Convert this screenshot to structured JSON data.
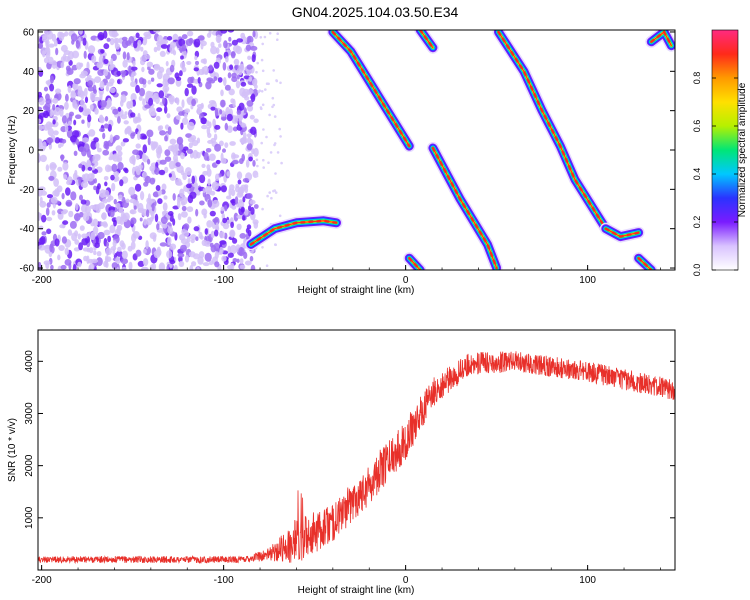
{
  "title": "GN04.2025.104.03.50.E34",
  "chart_data": [
    {
      "type": "heatmap",
      "xlabel": "Height of straight line (km)",
      "ylabel": "Frequency (Hz)",
      "xlim": [
        -202,
        148
      ],
      "ylim": [
        -61,
        61
      ],
      "xticks": [
        -200,
        -100,
        0,
        100
      ],
      "yticks": [
        -60,
        -40,
        -20,
        0,
        20,
        40,
        60
      ],
      "colorbar": {
        "label": "Normalized spectral amplitude",
        "range": [
          0,
          1
        ],
        "ticks": [
          "0.0",
          "0.2",
          "0.4",
          "0.6",
          "0.8"
        ],
        "tick_values": [
          0.0,
          0.2,
          0.4,
          0.6,
          0.8
        ],
        "colors": [
          "#ffffff",
          "#d9c3ff",
          "#7a1cff",
          "#2a33ff",
          "#00c8ff",
          "#00e676",
          "#b6f000",
          "#ffe000",
          "#ff9a00",
          "#ff2a1a",
          "#ff2a80"
        ]
      },
      "noise_region": {
        "x_range": [
          -202,
          -82
        ],
        "f_range": [
          -61,
          61
        ],
        "amplitude": 0.15
      },
      "features": [
        {
          "name": "",
          "points": [
            [
              -85,
              -48
            ],
            [
              -72,
              -40
            ],
            [
              -60,
              -37
            ],
            [
              -45,
              -36
            ],
            [
              -38,
              -37
            ]
          ]
        },
        {
          "name": "",
          "points": [
            [
              -40,
              60
            ],
            [
              -30,
              50
            ],
            [
              -20,
              35
            ],
            [
              -10,
              20
            ],
            [
              2,
              2
            ]
          ]
        },
        {
          "name": "",
          "points": [
            [
              8,
              61
            ],
            [
              15,
              52
            ]
          ]
        },
        {
          "name": "",
          "points": [
            [
              15,
              1
            ],
            [
              30,
              -25
            ],
            [
              45,
              -48
            ],
            [
              50,
              -60
            ]
          ]
        },
        {
          "name": "",
          "points": [
            [
              2,
              -55
            ],
            [
              8,
              -61
            ]
          ]
        },
        {
          "name": "",
          "points": [
            [
              51,
              60
            ],
            [
              65,
              40
            ],
            [
              75,
              20
            ],
            [
              85,
              2
            ],
            [
              93,
              -15
            ],
            [
              110,
              -40
            ]
          ]
        },
        {
          "name": "",
          "points": [
            [
              110,
              -40
            ],
            [
              118,
              -44
            ],
            [
              128,
              -42
            ]
          ]
        },
        {
          "name": "",
          "points": [
            [
              128,
              -55
            ],
            [
              135,
              -61
            ]
          ]
        },
        {
          "name": "",
          "points": [
            [
              135,
              55
            ],
            [
              142,
              60
            ],
            [
              146,
              53
            ]
          ]
        }
      ]
    },
    {
      "type": "line",
      "xlabel": "Height of straight line (km)",
      "ylabel": "SNR (10 * v/v)",
      "xlim": [
        -202,
        148
      ],
      "ylim": [
        0,
        4600
      ],
      "xticks": [
        -200,
        -100,
        0,
        100
      ],
      "yticks": [
        1000,
        2000,
        3000,
        4000
      ],
      "color": "#e8302a",
      "noise_seed": 7,
      "profile": [
        {
          "x": -202,
          "y": 200,
          "n": 80
        },
        {
          "x": -90,
          "y": 200,
          "n": 80
        },
        {
          "x": -75,
          "y": 300,
          "n": 150
        },
        {
          "x": -60,
          "y": 550,
          "n": 550
        },
        {
          "x": -40,
          "y": 900,
          "n": 450
        },
        {
          "x": -20,
          "y": 1650,
          "n": 500
        },
        {
          "x": 0,
          "y": 2500,
          "n": 500
        },
        {
          "x": 15,
          "y": 3400,
          "n": 350
        },
        {
          "x": 35,
          "y": 3950,
          "n": 280
        },
        {
          "x": 60,
          "y": 4000,
          "n": 250
        },
        {
          "x": 100,
          "y": 3800,
          "n": 250
        },
        {
          "x": 148,
          "y": 3450,
          "n": 250
        }
      ]
    }
  ]
}
